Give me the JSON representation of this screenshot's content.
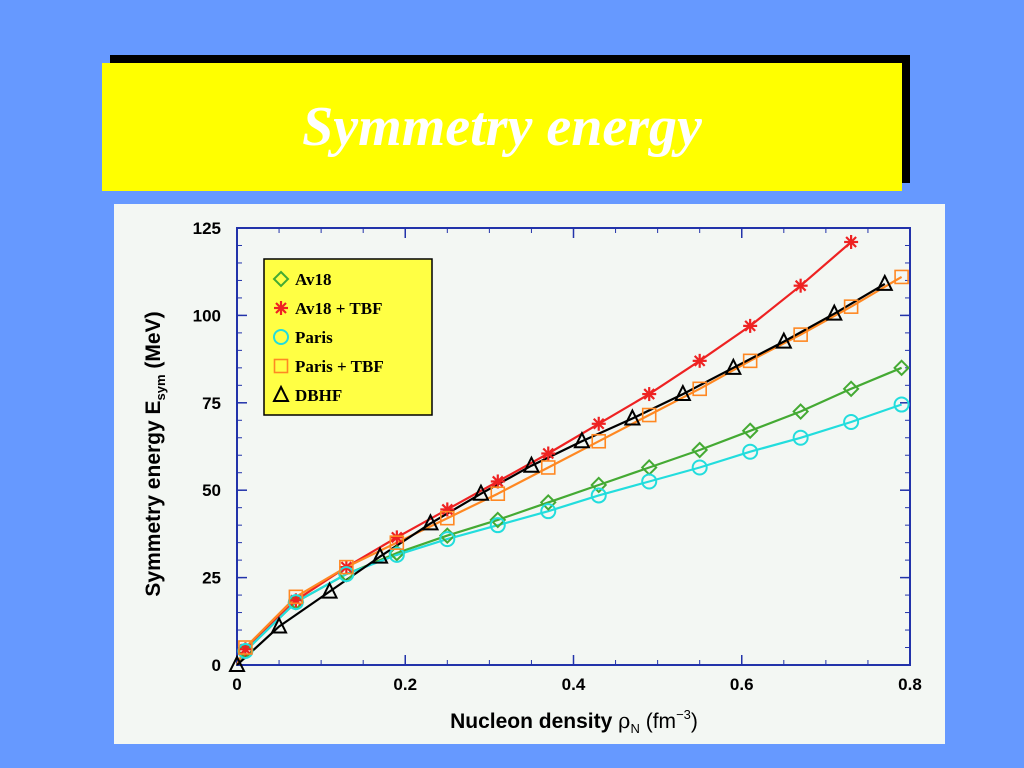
{
  "slide": {
    "title": "Symmetry energy"
  },
  "colors": {
    "background": "#6699ff",
    "title_box": "#ffff00",
    "title_text": "#ffffff",
    "av18": "#44aa33",
    "av18_tbf": "#ee2222",
    "paris": "#22dddd",
    "paris_tbf": "#ff8822",
    "dbhf": "#000000"
  },
  "chart_data": {
    "type": "line",
    "title": "",
    "xlabel": "Nucleon density",
    "xlabel_symbol": "ρ",
    "xlabel_sub": "N",
    "xlabel_unit_open": "(fm",
    "xlabel_unit_sup": "−3",
    "xlabel_unit_close": ")",
    "ylabel": "Symmetry energy  E",
    "ylabel_sub": "sym",
    "ylabel_unit": "(MeV)",
    "xlim": [
      0,
      0.8
    ],
    "ylim": [
      0,
      125
    ],
    "x_ticks": [
      "0",
      "0.2",
      "0.4",
      "0.6",
      "0.8"
    ],
    "y_ticks": [
      "0",
      "25",
      "50",
      "75",
      "100",
      "125"
    ],
    "legend_position": "top-left",
    "series": [
      {
        "name": "Av18",
        "marker": "diamond",
        "color": "#44aa33",
        "points": [
          [
            0.01,
            4
          ],
          [
            0.07,
            18
          ],
          [
            0.13,
            26
          ],
          [
            0.19,
            32
          ],
          [
            0.25,
            37
          ],
          [
            0.31,
            41.5
          ],
          [
            0.37,
            46.5
          ],
          [
            0.43,
            51.5
          ],
          [
            0.49,
            56.5
          ],
          [
            0.55,
            61.5
          ],
          [
            0.61,
            67
          ],
          [
            0.67,
            72.5
          ],
          [
            0.73,
            79
          ],
          [
            0.79,
            85
          ]
        ]
      },
      {
        "name": "Av18 + TBF",
        "marker": "asterisk",
        "color": "#ee2222",
        "points": [
          [
            0.01,
            4.5
          ],
          [
            0.07,
            18.5
          ],
          [
            0.13,
            28
          ],
          [
            0.19,
            36.5
          ],
          [
            0.25,
            44.5
          ],
          [
            0.31,
            52.5
          ],
          [
            0.37,
            60.5
          ],
          [
            0.43,
            69
          ],
          [
            0.49,
            77.5
          ],
          [
            0.55,
            87
          ],
          [
            0.61,
            97
          ],
          [
            0.67,
            108.5
          ],
          [
            0.73,
            121
          ]
        ]
      },
      {
        "name": "Paris",
        "marker": "circle",
        "color": "#22dddd",
        "points": [
          [
            0.01,
            4
          ],
          [
            0.07,
            18
          ],
          [
            0.13,
            26
          ],
          [
            0.19,
            31.5
          ],
          [
            0.25,
            36
          ],
          [
            0.31,
            40
          ],
          [
            0.37,
            44
          ],
          [
            0.43,
            48.5
          ],
          [
            0.49,
            52.5
          ],
          [
            0.55,
            56.5
          ],
          [
            0.61,
            61
          ],
          [
            0.67,
            65
          ],
          [
            0.73,
            69.5
          ],
          [
            0.79,
            74.5
          ]
        ]
      },
      {
        "name": "Paris + TBF",
        "marker": "square",
        "color": "#ff8822",
        "points": [
          [
            0.01,
            5
          ],
          [
            0.07,
            19.5
          ],
          [
            0.13,
            28
          ],
          [
            0.19,
            35
          ],
          [
            0.25,
            42
          ],
          [
            0.31,
            49
          ],
          [
            0.37,
            56.5
          ],
          [
            0.43,
            64
          ],
          [
            0.49,
            71.5
          ],
          [
            0.55,
            79
          ],
          [
            0.61,
            87
          ],
          [
            0.67,
            94.5
          ],
          [
            0.73,
            102.5
          ],
          [
            0.79,
            111
          ]
        ]
      },
      {
        "name": "DBHF",
        "marker": "triangle",
        "color": "#000000",
        "points": [
          [
            0.0,
            0
          ],
          [
            0.05,
            11
          ],
          [
            0.11,
            21
          ],
          [
            0.17,
            31
          ],
          [
            0.23,
            40.5
          ],
          [
            0.29,
            49
          ],
          [
            0.35,
            57
          ],
          [
            0.41,
            64
          ],
          [
            0.47,
            70.5
          ],
          [
            0.53,
            77.5
          ],
          [
            0.59,
            85
          ],
          [
            0.65,
            92.5
          ],
          [
            0.71,
            100.5
          ],
          [
            0.77,
            109
          ]
        ]
      }
    ]
  }
}
